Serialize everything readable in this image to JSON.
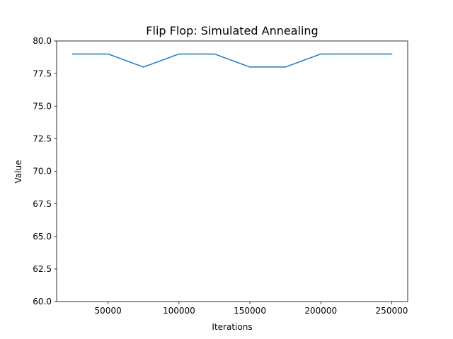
{
  "chart_data": {
    "type": "line",
    "title": "Flip Flop: Simulated Annealing",
    "xlabel": "Iterations",
    "ylabel": "Value",
    "x": [
      25000,
      50000,
      75000,
      100000,
      125000,
      150000,
      175000,
      200000,
      225000,
      250000
    ],
    "series": [
      {
        "values": [
          79,
          79,
          78,
          79,
          79,
          78,
          78,
          79,
          79,
          79
        ],
        "color": "#1f77b4"
      }
    ],
    "xlim": [
      13750,
      261250
    ],
    "ylim": [
      60,
      80
    ],
    "xticks": [
      50000,
      100000,
      150000,
      200000,
      250000
    ],
    "yticks": [
      60.0,
      62.5,
      65.0,
      67.5,
      70.0,
      72.5,
      75.0,
      77.5,
      80.0
    ],
    "xtick_labels": [
      "50000",
      "100000",
      "150000",
      "200000",
      "250000"
    ],
    "ytick_labels": [
      "60.0",
      "62.5",
      "65.0",
      "67.5",
      "70.0",
      "72.5",
      "75.0",
      "77.5",
      "80.0"
    ],
    "grid": false,
    "legend": "none"
  }
}
